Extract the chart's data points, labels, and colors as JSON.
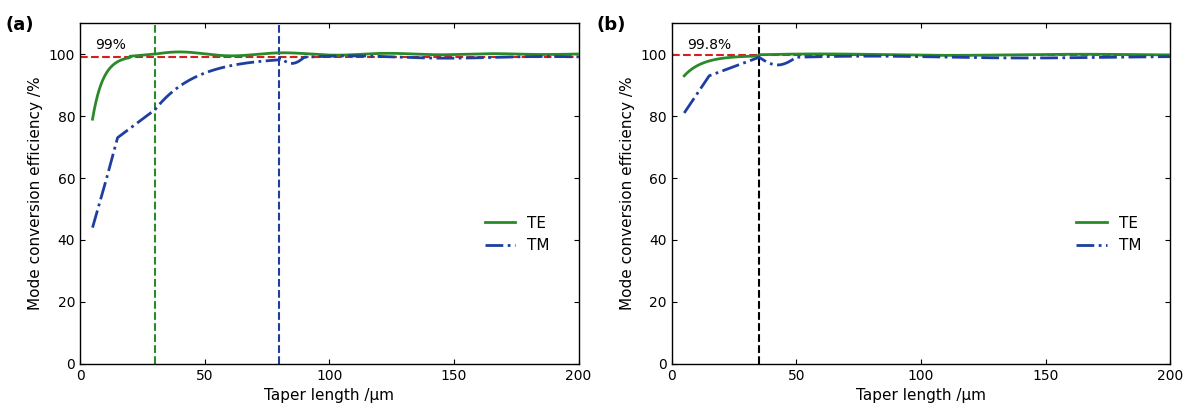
{
  "panel_a": {
    "label": "(a)",
    "annotation": "99%",
    "ref_line_y": 99,
    "vline_TE_x": 30,
    "vline_TM_x": 80,
    "vline_TE_color": "#2a8a2a",
    "vline_TM_color": "#1e3fa0",
    "ref_line_color": "#d42020",
    "TE_color": "#2a8a2a",
    "TM_color": "#1e3fa0",
    "xlim": [
      0,
      200
    ],
    "ylim": [
      0,
      110
    ],
    "yticks": [
      0,
      20,
      40,
      60,
      80,
      100
    ],
    "xticks": [
      0,
      50,
      100,
      150,
      200
    ],
    "xlabel": "Taper length /μm",
    "ylabel": "Mode conversion efficiency /%"
  },
  "panel_b": {
    "label": "(b)",
    "annotation": "99.8%",
    "ref_line_y": 99.8,
    "vline_x": 35,
    "vline_color": "#000000",
    "ref_line_color": "#d42020",
    "TE_color": "#2a8a2a",
    "TM_color": "#1e3fa0",
    "xlim": [
      0,
      200
    ],
    "ylim": [
      0,
      110
    ],
    "yticks": [
      0,
      20,
      40,
      60,
      80,
      100
    ],
    "xticks": [
      0,
      50,
      100,
      150,
      200
    ],
    "xlabel": "Taper length /μm",
    "ylabel": "Mode conversion efficiency /%"
  }
}
